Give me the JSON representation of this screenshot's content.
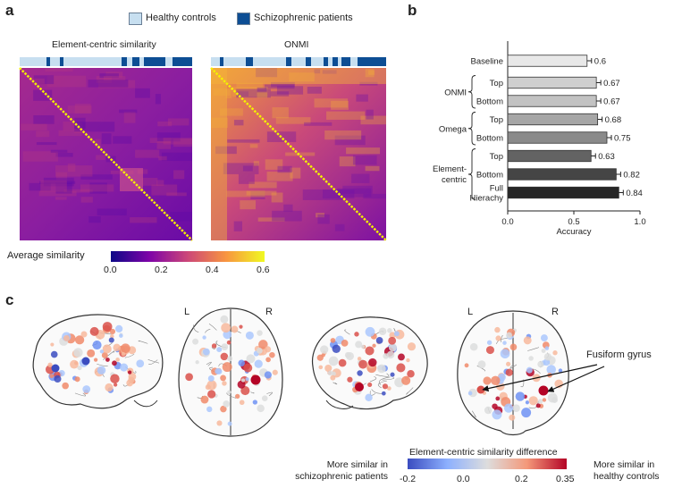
{
  "panel_labels": {
    "a": "a",
    "b": "b",
    "c": "c"
  },
  "legend": {
    "items": [
      {
        "label": "Healthy controls",
        "color": "#c7dff0"
      },
      {
        "label": "Schizophrenic patients",
        "color": "#0d4e94"
      }
    ]
  },
  "panel_a": {
    "titles": [
      "Element-centric similarity",
      "ONMI"
    ],
    "colorbar": {
      "label": "Average similarity",
      "ticks": [
        "0.0",
        "0.2",
        "0.4",
        "0.6"
      ],
      "colors": [
        "#0d0887",
        "#7e03a8",
        "#cc4778",
        "#f89540",
        "#f0f921"
      ]
    }
  },
  "chart_data": {
    "type": "bar",
    "orientation": "horizontal",
    "categories": [
      "Baseline",
      "Top",
      "Bottom",
      "Top",
      "Bottom",
      "Top",
      "Bottom",
      "Full Hierachy"
    ],
    "groups": [
      {
        "name": "ONMI",
        "categories": [
          1,
          2
        ]
      },
      {
        "name": "Omega",
        "categories": [
          3,
          4
        ]
      },
      {
        "name": "Element-centric",
        "categories": [
          5,
          6,
          7
        ]
      }
    ],
    "values": [
      0.6,
      0.67,
      0.67,
      0.68,
      0.75,
      0.63,
      0.82,
      0.84
    ],
    "value_labels": [
      "0.6",
      "0.67",
      "0.67",
      "0.68",
      "0.75",
      "0.63",
      "0.82",
      "0.84"
    ],
    "bar_colors": [
      "#e8e8e8",
      "#cfcfcf",
      "#c2c2c2",
      "#a6a6a6",
      "#8a8a8a",
      "#636363",
      "#454545",
      "#262626"
    ],
    "xlabel": "Accuracy",
    "xlim": [
      0,
      1
    ],
    "xticks": [
      "0.0",
      "0.5",
      "1.0"
    ],
    "error_bars": true
  },
  "panel_c": {
    "hemisphere_labels": [
      "L",
      "R",
      "L",
      "R"
    ],
    "annotation": "Fusiform gyrus",
    "colorbar": {
      "title": "Element-centric similarity difference",
      "ticks": [
        "-0.2",
        "0.0",
        "0.2",
        "0.35"
      ],
      "colors": [
        "#3a4cc0",
        "#8db0fe",
        "#dddddd",
        "#f4987a",
        "#b40426"
      ],
      "left_label": [
        "More similar in",
        "schizophrenic patients"
      ],
      "right_label": [
        "More similar in",
        "healthy controls"
      ]
    }
  }
}
